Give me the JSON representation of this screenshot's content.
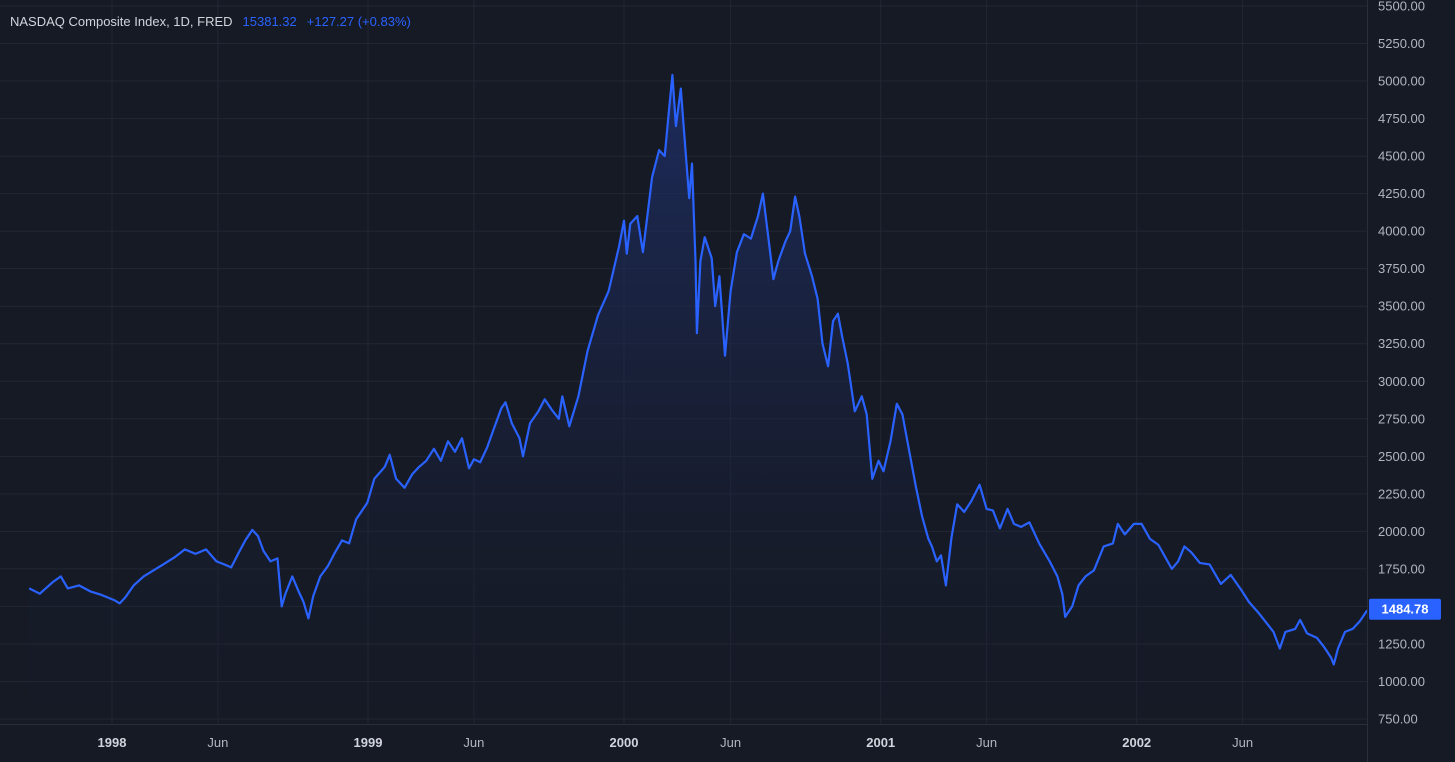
{
  "colors": {
    "background": "#161a25",
    "grid": "#232734",
    "axis_text": "#b2b5be",
    "line": "#2962ff",
    "fill_top": "#1f3170",
    "price_tag_bg": "#2962ff",
    "price_tag_text": "#ffffff"
  },
  "legend": {
    "symbol": "NASDAQ Composite Index, 1D, FRED",
    "value": "15381.32",
    "change": "+127.27 (+0.83%)"
  },
  "chart_data": {
    "type": "area",
    "title": "NASDAQ Composite Index, 1D, FRED",
    "y_scale": "linear",
    "ylim": [
      750,
      5500
    ],
    "y_ticks": [
      "750.00",
      "1000.00",
      "1250.00",
      "1500.00",
      "1750.00",
      "2000.00",
      "2250.00",
      "2500.00",
      "2750.00",
      "3000.00",
      "3250.00",
      "3500.00",
      "3750.00",
      "4000.00",
      "4250.00",
      "4500.00",
      "4750.00",
      "5000.00",
      "5250.00",
      "5500.00"
    ],
    "x_ticks": [
      "1998",
      "Jun",
      "1999",
      "Jun",
      "2000",
      "Jun",
      "2001",
      "Jun",
      "2002",
      "Jun"
    ],
    "x_tick_dates": [
      "1998-01-01",
      "1998-06-01",
      "1999-01-01",
      "1999-06-01",
      "2000-01-01",
      "2000-06-01",
      "2001-01-01",
      "2001-06-01",
      "2002-01-01",
      "2002-06-01"
    ],
    "last_value_label": "1484.78",
    "grid": true,
    "series": [
      {
        "points": [
          [
            "1997-09-05",
            1620
          ],
          [
            "1997-09-20",
            1585
          ],
          [
            "1997-10-08",
            1660
          ],
          [
            "1997-10-20",
            1700
          ],
          [
            "1997-10-30",
            1620
          ],
          [
            "1997-11-15",
            1640
          ],
          [
            "1997-12-01",
            1600
          ],
          [
            "1997-12-15",
            1580
          ],
          [
            "1998-01-05",
            1540
          ],
          [
            "1998-01-12",
            1520
          ],
          [
            "1998-01-20",
            1560
          ],
          [
            "1998-02-01",
            1640
          ],
          [
            "1998-02-15",
            1700
          ],
          [
            "1998-03-01",
            1740
          ],
          [
            "1998-03-15",
            1780
          ],
          [
            "1998-04-01",
            1830
          ],
          [
            "1998-04-15",
            1880
          ],
          [
            "1998-04-30",
            1850
          ],
          [
            "1998-05-15",
            1880
          ],
          [
            "1998-05-30",
            1800
          ],
          [
            "1998-06-10",
            1780
          ],
          [
            "1998-06-20",
            1760
          ],
          [
            "1998-07-01",
            1860
          ],
          [
            "1998-07-10",
            1940
          ],
          [
            "1998-07-20",
            2010
          ],
          [
            "1998-07-28",
            1970
          ],
          [
            "1998-08-05",
            1870
          ],
          [
            "1998-08-15",
            1800
          ],
          [
            "1998-08-25",
            1820
          ],
          [
            "1998-08-31",
            1500
          ],
          [
            "1998-09-05",
            1580
          ],
          [
            "1998-09-15",
            1700
          ],
          [
            "1998-09-25",
            1590
          ],
          [
            "1998-10-01",
            1530
          ],
          [
            "1998-10-08",
            1420
          ],
          [
            "1998-10-15",
            1570
          ],
          [
            "1998-10-25",
            1700
          ],
          [
            "1998-11-05",
            1770
          ],
          [
            "1998-11-15",
            1860
          ],
          [
            "1998-11-25",
            1940
          ],
          [
            "1998-12-05",
            1920
          ],
          [
            "1998-12-15",
            2080
          ],
          [
            "1998-12-31",
            2190
          ],
          [
            "1999-01-10",
            2350
          ],
          [
            "1999-01-25",
            2430
          ],
          [
            "1999-02-01",
            2510
          ],
          [
            "1999-02-10",
            2350
          ],
          [
            "1999-02-22",
            2290
          ],
          [
            "1999-03-05",
            2380
          ],
          [
            "1999-03-15",
            2430
          ],
          [
            "1999-03-25",
            2470
          ],
          [
            "1999-04-05",
            2550
          ],
          [
            "1999-04-15",
            2470
          ],
          [
            "1999-04-25",
            2600
          ],
          [
            "1999-05-05",
            2530
          ],
          [
            "1999-05-15",
            2620
          ],
          [
            "1999-05-25",
            2420
          ],
          [
            "1999-06-01",
            2480
          ],
          [
            "1999-06-10",
            2460
          ],
          [
            "1999-06-20",
            2560
          ],
          [
            "1999-06-30",
            2690
          ],
          [
            "1999-07-10",
            2820
          ],
          [
            "1999-07-16",
            2860
          ],
          [
            "1999-07-25",
            2720
          ],
          [
            "1999-08-05",
            2620
          ],
          [
            "1999-08-10",
            2500
          ],
          [
            "1999-08-20",
            2720
          ],
          [
            "1999-09-01",
            2800
          ],
          [
            "1999-09-10",
            2880
          ],
          [
            "1999-09-20",
            2810
          ],
          [
            "1999-09-30",
            2750
          ],
          [
            "1999-10-05",
            2900
          ],
          [
            "1999-10-15",
            2700
          ],
          [
            "1999-10-28",
            2900
          ],
          [
            "1999-11-10",
            3200
          ],
          [
            "1999-11-25",
            3440
          ],
          [
            "1999-12-10",
            3600
          ],
          [
            "1999-12-25",
            3900
          ],
          [
            "2000-01-01",
            4070
          ],
          [
            "2000-01-05",
            3850
          ],
          [
            "2000-01-10",
            4050
          ],
          [
            "2000-01-20",
            4100
          ],
          [
            "2000-01-28",
            3860
          ],
          [
            "2000-02-10",
            4360
          ],
          [
            "2000-02-20",
            4540
          ],
          [
            "2000-02-28",
            4500
          ],
          [
            "2000-03-05",
            4800
          ],
          [
            "2000-03-10",
            5040
          ],
          [
            "2000-03-15",
            4700
          ],
          [
            "2000-03-22",
            4950
          ],
          [
            "2000-03-30",
            4460
          ],
          [
            "2000-04-03",
            4220
          ],
          [
            "2000-04-07",
            4450
          ],
          [
            "2000-04-12",
            3800
          ],
          [
            "2000-04-14",
            3320
          ],
          [
            "2000-04-19",
            3800
          ],
          [
            "2000-04-25",
            3960
          ],
          [
            "2000-05-05",
            3820
          ],
          [
            "2000-05-10",
            3500
          ],
          [
            "2000-05-16",
            3700
          ],
          [
            "2000-05-24",
            3170
          ],
          [
            "2000-06-01",
            3600
          ],
          [
            "2000-06-10",
            3860
          ],
          [
            "2000-06-20",
            3980
          ],
          [
            "2000-06-30",
            3950
          ],
          [
            "2000-07-10",
            4100
          ],
          [
            "2000-07-17",
            4250
          ],
          [
            "2000-07-25",
            3950
          ],
          [
            "2000-08-01",
            3680
          ],
          [
            "2000-08-08",
            3800
          ],
          [
            "2000-08-18",
            3930
          ],
          [
            "2000-08-25",
            4000
          ],
          [
            "2000-09-01",
            4230
          ],
          [
            "2000-09-07",
            4100
          ],
          [
            "2000-09-15",
            3850
          ],
          [
            "2000-09-25",
            3700
          ],
          [
            "2000-10-03",
            3550
          ],
          [
            "2000-10-10",
            3250
          ],
          [
            "2000-10-18",
            3100
          ],
          [
            "2000-10-25",
            3400
          ],
          [
            "2000-11-01",
            3450
          ],
          [
            "2000-11-07",
            3300
          ],
          [
            "2000-11-15",
            3120
          ],
          [
            "2000-11-25",
            2800
          ],
          [
            "2000-12-05",
            2900
          ],
          [
            "2000-12-12",
            2780
          ],
          [
            "2000-12-20",
            2350
          ],
          [
            "2000-12-29",
            2470
          ],
          [
            "2001-01-05",
            2400
          ],
          [
            "2001-01-15",
            2600
          ],
          [
            "2001-01-24",
            2850
          ],
          [
            "2001-02-01",
            2780
          ],
          [
            "2001-02-10",
            2550
          ],
          [
            "2001-02-20",
            2300
          ],
          [
            "2001-03-01",
            2100
          ],
          [
            "2001-03-10",
            1950
          ],
          [
            "2001-03-15",
            1900
          ],
          [
            "2001-03-22",
            1800
          ],
          [
            "2001-03-28",
            1840
          ],
          [
            "2001-04-04",
            1640
          ],
          [
            "2001-04-12",
            1960
          ],
          [
            "2001-04-20",
            2180
          ],
          [
            "2001-04-30",
            2130
          ],
          [
            "2001-05-10",
            2200
          ],
          [
            "2001-05-22",
            2310
          ],
          [
            "2001-06-01",
            2150
          ],
          [
            "2001-06-10",
            2140
          ],
          [
            "2001-06-20",
            2020
          ],
          [
            "2001-07-01",
            2150
          ],
          [
            "2001-07-10",
            2050
          ],
          [
            "2001-07-20",
            2030
          ],
          [
            "2001-08-01",
            2060
          ],
          [
            "2001-08-15",
            1920
          ],
          [
            "2001-08-30",
            1800
          ],
          [
            "2001-09-10",
            1700
          ],
          [
            "2001-09-17",
            1580
          ],
          [
            "2001-09-21",
            1430
          ],
          [
            "2001-10-01",
            1500
          ],
          [
            "2001-10-10",
            1640
          ],
          [
            "2001-10-20",
            1700
          ],
          [
            "2001-11-01",
            1740
          ],
          [
            "2001-11-15",
            1900
          ],
          [
            "2001-11-28",
            1920
          ],
          [
            "2001-12-05",
            2050
          ],
          [
            "2001-12-15",
            1980
          ],
          [
            "2001-12-28",
            2050
          ],
          [
            "2002-01-08",
            2050
          ],
          [
            "2002-01-20",
            1950
          ],
          [
            "2002-02-01",
            1910
          ],
          [
            "2002-02-20",
            1750
          ],
          [
            "2002-03-01",
            1800
          ],
          [
            "2002-03-10",
            1900
          ],
          [
            "2002-03-20",
            1860
          ],
          [
            "2002-04-01",
            1790
          ],
          [
            "2002-04-15",
            1780
          ],
          [
            "2002-05-01",
            1650
          ],
          [
            "2002-05-15",
            1710
          ],
          [
            "2002-05-30",
            1610
          ],
          [
            "2002-06-10",
            1530
          ],
          [
            "2002-06-25",
            1450
          ],
          [
            "2002-07-05",
            1390
          ],
          [
            "2002-07-15",
            1330
          ],
          [
            "2002-07-24",
            1220
          ],
          [
            "2002-08-01",
            1330
          ],
          [
            "2002-08-15",
            1350
          ],
          [
            "2002-08-22",
            1410
          ],
          [
            "2002-09-01",
            1320
          ],
          [
            "2002-09-15",
            1290
          ],
          [
            "2002-09-25",
            1230
          ],
          [
            "2002-10-05",
            1160
          ],
          [
            "2002-10-09",
            1114
          ],
          [
            "2002-10-15",
            1220
          ],
          [
            "2002-10-25",
            1330
          ],
          [
            "2002-11-05",
            1350
          ],
          [
            "2002-11-15",
            1400
          ],
          [
            "2002-11-25",
            1470
          ],
          [
            "2002-12-02",
            1480
          ],
          [
            "2002-12-05",
            1450
          ],
          [
            "2002-12-09",
            1484.78
          ]
        ]
      }
    ]
  }
}
